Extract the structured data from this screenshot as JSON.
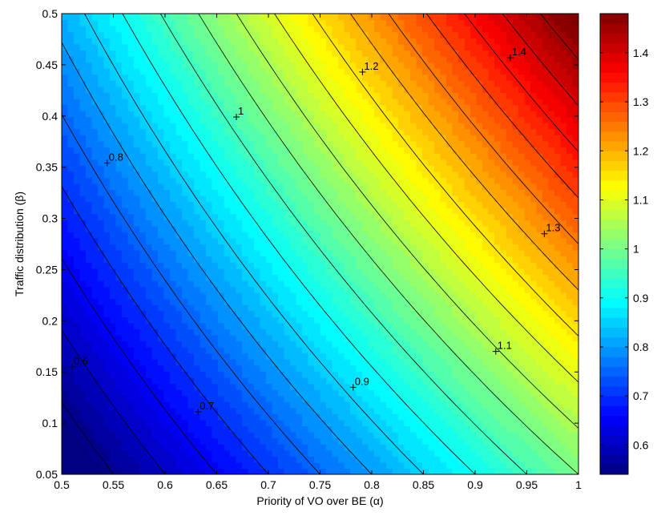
{
  "chart_data": {
    "type": "heatmap",
    "subtype": "filled-contour",
    "colormap": "jet",
    "xlabel": "Priority of VO over BE (α)",
    "ylabel": "Traffic distribution (β)",
    "xlim": [
      0.5,
      1.0
    ],
    "ylim": [
      0.05,
      0.5
    ],
    "x_ticks": [
      "0.5",
      "0.55",
      "0.6",
      "0.65",
      "0.7",
      "0.75",
      "0.8",
      "0.85",
      "0.9",
      "0.95",
      "1"
    ],
    "y_ticks": [
      "0.05",
      "0.1",
      "0.15",
      "0.2",
      "0.25",
      "0.3",
      "0.35",
      "0.4",
      "0.45",
      "0.5"
    ],
    "colorbar": {
      "range": [
        0.54,
        1.48
      ],
      "ticks": [
        "0.6",
        "0.7",
        "0.8",
        "0.9",
        "1",
        "1.1",
        "1.2",
        "1.3",
        "1.4"
      ]
    },
    "value_model": {
      "type": "bilinear",
      "corners": {
        "x0_y0": 0.5,
        "x1_y0": 1.0,
        "x0_y1": 0.82,
        "x1_y1": 1.5
      }
    },
    "contour_labels": [
      {
        "text": "0.6",
        "x": 0.51,
        "y": 0.155
      },
      {
        "text": "0.7",
        "x": 0.632,
        "y": 0.111
      },
      {
        "text": "0.8",
        "x": 0.544,
        "y": 0.354
      },
      {
        "text": "0.9",
        "x": 0.782,
        "y": 0.135
      },
      {
        "text": "1",
        "x": 0.669,
        "y": 0.399
      },
      {
        "text": "1.1",
        "x": 0.92,
        "y": 0.17
      },
      {
        "text": "1.2",
        "x": 0.791,
        "y": 0.443
      },
      {
        "text": "1.3",
        "x": 0.967,
        "y": 0.285
      },
      {
        "text": "1.4",
        "x": 0.934,
        "y": 0.457
      }
    ],
    "legend": "none",
    "grid": false
  }
}
